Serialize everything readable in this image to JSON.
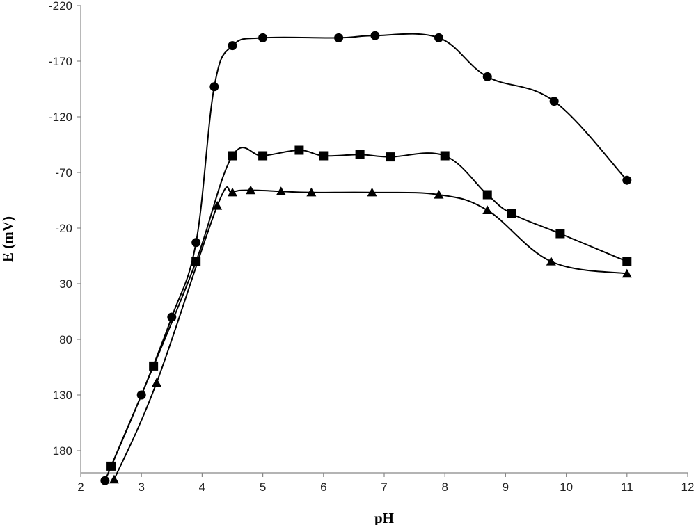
{
  "chart_data": {
    "type": "line",
    "title": "",
    "xlabel": "pH",
    "ylabel": "E (mV)",
    "xlim": [
      2,
      12
    ],
    "ylim": [
      -220,
      200
    ],
    "y_inverted": true,
    "x_ticks": [
      2,
      3,
      4,
      5,
      6,
      7,
      8,
      9,
      10,
      11,
      12
    ],
    "y_ticks": [
      -220,
      -170,
      -120,
      -70,
      -20,
      30,
      80,
      130,
      180
    ],
    "grid": false,
    "legend": "none",
    "series": [
      {
        "marker": "circle",
        "x": [
          2.4,
          3.0,
          3.5,
          3.9,
          4.2,
          4.5,
          5.0,
          6.25,
          6.85,
          7.9,
          8.7,
          9.8,
          11.0
        ],
        "y": [
          207,
          130,
          60,
          -7,
          -147,
          -184,
          -191,
          -191,
          -193,
          -191,
          -156,
          -134,
          -63
        ]
      },
      {
        "marker": "square",
        "x": [
          2.5,
          3.2,
          3.9,
          4.5,
          5.0,
          5.6,
          6.0,
          6.6,
          7.1,
          8.0,
          8.7,
          9.1,
          9.9,
          11.0
        ],
        "y": [
          194,
          104,
          10,
          -85,
          -85,
          -90,
          -85,
          -86,
          -84,
          -85,
          -50,
          -33,
          -15,
          10
        ]
      },
      {
        "marker": "triangle",
        "x": [
          2.55,
          3.25,
          4.25,
          4.5,
          4.8,
          5.3,
          5.8,
          6.8,
          7.9,
          8.7,
          9.75,
          11.0
        ],
        "y": [
          206,
          119,
          -40,
          -52,
          -54,
          -53,
          -52,
          -52,
          -50,
          -36,
          10,
          21
        ]
      }
    ]
  }
}
